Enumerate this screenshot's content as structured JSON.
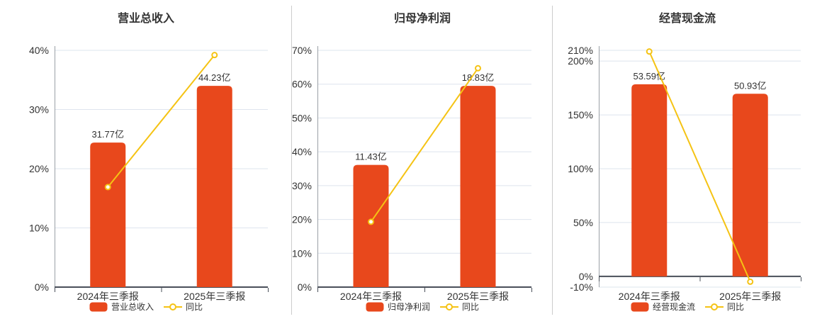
{
  "colors": {
    "bar": "#E8481C",
    "line": "#F5C314",
    "grid": "#DEE4EE",
    "axis": "#9AA0A6",
    "zero_line": "#4A505A",
    "text": "#333333",
    "divider": "#CCCCCC",
    "background": "#FFFFFF",
    "marker_fill": "#FFFFFF"
  },
  "chart_data": [
    {
      "type": "bar+line",
      "title": "营业总收入",
      "categories": [
        "2024年三季报",
        "2025年三季报"
      ],
      "series": [
        {
          "name": "营业总收入",
          "type": "bar",
          "unit": "亿",
          "values": [
            31.77,
            44.23
          ],
          "labels": [
            "31.77亿",
            "44.23亿"
          ],
          "color": "#E8481C"
        },
        {
          "name": "同比",
          "type": "line",
          "unit": "%",
          "values": [
            16.9,
            39.2
          ],
          "color": "#F5C314"
        }
      ],
      "y_axis": {
        "min": 0,
        "max": 40,
        "ticks": [
          {
            "value": 0,
            "label": "0%"
          },
          {
            "value": 10,
            "label": "10%"
          },
          {
            "value": 20,
            "label": "20%"
          },
          {
            "value": 30,
            "label": "30%"
          },
          {
            "value": 40,
            "label": "40%"
          }
        ]
      },
      "legend_position": "bottom",
      "grid": true
    },
    {
      "type": "bar+line",
      "title": "归母净利润",
      "categories": [
        "2024年三季报",
        "2025年三季报"
      ],
      "series": [
        {
          "name": "归母净利润",
          "type": "bar",
          "unit": "亿",
          "values": [
            11.43,
            18.83
          ],
          "labels": [
            "11.43亿",
            "18.83亿"
          ],
          "color": "#E8481C"
        },
        {
          "name": "同比",
          "type": "line",
          "unit": "%",
          "values": [
            19.3,
            64.7
          ],
          "color": "#F5C314"
        }
      ],
      "y_axis": {
        "min": 0,
        "max": 70,
        "ticks": [
          {
            "value": 0,
            "label": "0%"
          },
          {
            "value": 10,
            "label": "10%"
          },
          {
            "value": 20,
            "label": "20%"
          },
          {
            "value": 30,
            "label": "30%"
          },
          {
            "value": 40,
            "label": "40%"
          },
          {
            "value": 50,
            "label": "50%"
          },
          {
            "value": 60,
            "label": "60%"
          },
          {
            "value": 70,
            "label": "70%"
          }
        ]
      },
      "legend_position": "bottom",
      "grid": true
    },
    {
      "type": "bar+line",
      "title": "经营现金流",
      "categories": [
        "2024年三季报",
        "2025年三季报"
      ],
      "series": [
        {
          "name": "经营现金流",
          "type": "bar",
          "unit": "亿",
          "values": [
            53.59,
            50.93
          ],
          "labels": [
            "53.59亿",
            "50.93亿"
          ],
          "color": "#E8481C"
        },
        {
          "name": "同比",
          "type": "line",
          "unit": "%",
          "values": [
            208.9,
            -5.0
          ],
          "color": "#F5C314"
        }
      ],
      "y_axis": {
        "min": -10,
        "max": 210,
        "ticks": [
          {
            "value": -10,
            "label": "-10%"
          },
          {
            "value": 0,
            "label": "0%"
          },
          {
            "value": 50,
            "label": "50%"
          },
          {
            "value": 100,
            "label": "100%"
          },
          {
            "value": 150,
            "label": "150%"
          },
          {
            "value": 200,
            "label": "200%"
          },
          {
            "value": 210,
            "label": "210%"
          }
        ]
      },
      "legend_position": "bottom",
      "grid": true
    }
  ]
}
